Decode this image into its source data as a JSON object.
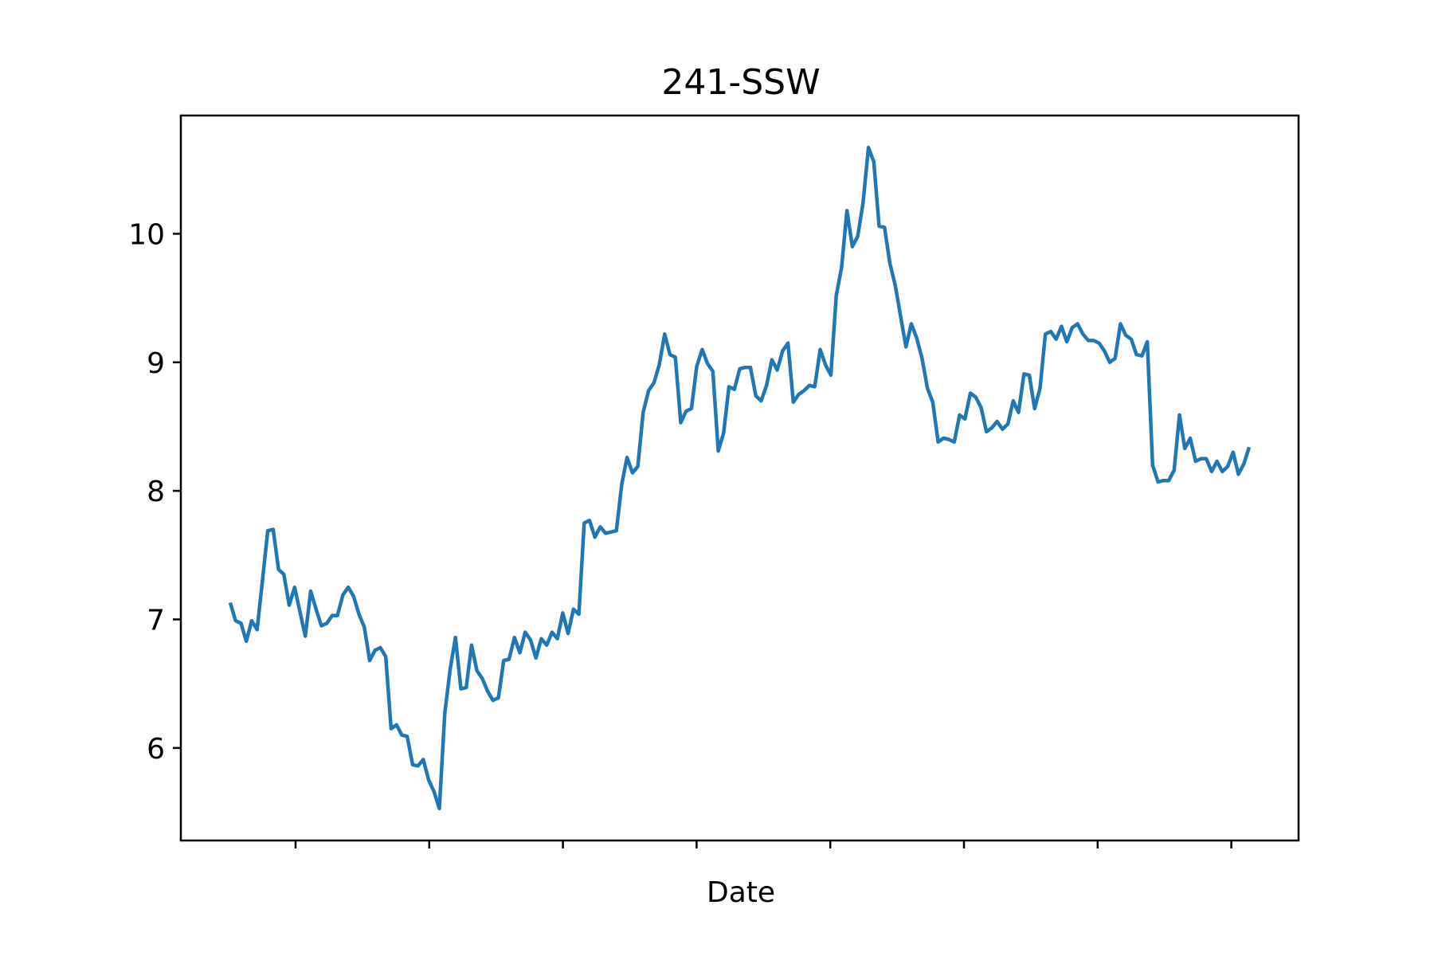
{
  "chart_data": {
    "type": "line",
    "title": "241-SSW",
    "xlabel": "Date",
    "ylabel": "",
    "ylim": [
      5.28,
      10.92
    ],
    "yticks": [
      6,
      7,
      8,
      9,
      10
    ],
    "ytick_labels": [
      "6",
      "7",
      "8",
      "9",
      "10"
    ],
    "xtick_count": 8,
    "xtick_labels": [],
    "grid": false,
    "legend": "none",
    "series": [
      {
        "color": "#1f77b4",
        "values": [
          7.13,
          6.99,
          6.97,
          6.83,
          6.99,
          6.92,
          7.3,
          7.69,
          7.7,
          7.39,
          7.35,
          7.11,
          7.25,
          7.06,
          6.87,
          7.22,
          7.08,
          6.95,
          6.97,
          7.03,
          7.03,
          7.19,
          7.25,
          7.18,
          7.04,
          6.94,
          6.68,
          6.76,
          6.78,
          6.71,
          6.15,
          6.18,
          6.1,
          6.09,
          5.87,
          5.86,
          5.91,
          5.75,
          5.66,
          5.53,
          6.27,
          6.61,
          6.86,
          6.46,
          6.47,
          6.8,
          6.6,
          6.54,
          6.44,
          6.37,
          6.39,
          6.68,
          6.69,
          6.86,
          6.74,
          6.9,
          6.84,
          6.7,
          6.85,
          6.8,
          6.9,
          6.85,
          7.05,
          6.89,
          7.08,
          7.04,
          7.75,
          7.77,
          7.64,
          7.72,
          7.67,
          7.68,
          7.69,
          8.05,
          8.26,
          8.14,
          8.19,
          8.61,
          8.78,
          8.84,
          8.98,
          9.22,
          9.06,
          9.04,
          8.53,
          8.62,
          8.64,
          8.97,
          9.1,
          8.99,
          8.93,
          8.31,
          8.45,
          8.81,
          8.79,
          8.95,
          8.96,
          8.96,
          8.74,
          8.7,
          8.82,
          9.02,
          8.94,
          9.09,
          9.15,
          8.69,
          8.75,
          8.78,
          8.82,
          8.81,
          9.1,
          8.98,
          8.9,
          9.52,
          9.74,
          10.18,
          9.9,
          9.98,
          10.24,
          10.67,
          10.56,
          10.06,
          10.05,
          9.77,
          9.6,
          9.36,
          9.12,
          9.3,
          9.19,
          9.03,
          8.8,
          8.69,
          8.38,
          8.41,
          8.4,
          8.38,
          8.59,
          8.56,
          8.76,
          8.73,
          8.65,
          8.46,
          8.49,
          8.54,
          8.48,
          8.52,
          8.7,
          8.61,
          8.91,
          8.9,
          8.64,
          8.8,
          9.22,
          9.24,
          9.18,
          9.28,
          9.16,
          9.27,
          9.3,
          9.22,
          9.17,
          9.17,
          9.15,
          9.09,
          9.0,
          9.03,
          9.3,
          9.21,
          9.18,
          9.06,
          9.05,
          9.16,
          8.2,
          8.07,
          8.08,
          8.08,
          8.16,
          8.59,
          8.33,
          8.41,
          8.23,
          8.25,
          8.25,
          8.15,
          8.23,
          8.15,
          8.19,
          8.3,
          8.13,
          8.21,
          8.34
        ]
      }
    ]
  }
}
